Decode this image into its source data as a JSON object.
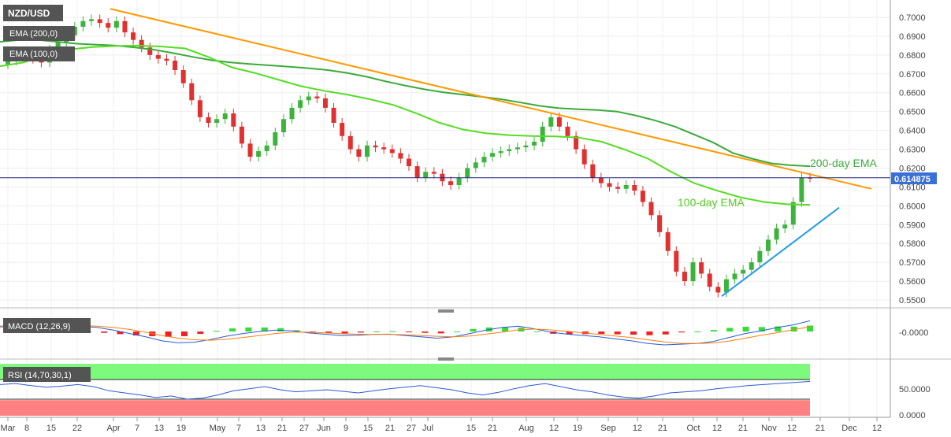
{
  "chart_data": [
    {
      "type": "candlestick",
      "title": "NZD/USD",
      "ylim": [
        0.545,
        0.703
      ],
      "y_ticks": [
        "0.7000",
        "0.6900",
        "0.6800",
        "0.6700",
        "0.6600",
        "0.6500",
        "0.6400",
        "0.6300",
        "0.6200",
        "0.6100",
        "0.6000",
        "0.5900",
        "0.5800",
        "0.5700",
        "0.5600",
        "0.5500"
      ],
      "last_price": "0.614875",
      "x_ticks": [
        "Mar",
        "8",
        "15",
        "22",
        "Apr",
        "7",
        "13",
        "19",
        "May",
        "7",
        "13",
        "21",
        "27",
        "Jun",
        "9",
        "15",
        "21",
        "27",
        "Jul",
        "15",
        "21",
        "Aug",
        "12",
        "19",
        "Sep",
        "12",
        "21",
        "Oct",
        "12",
        "21",
        "Nov",
        "12",
        "21",
        "Dec",
        "12"
      ],
      "legend": [
        "EMA (200,0)",
        "EMA (100,0)"
      ],
      "annotations": [
        "200-day EMA",
        "100-day EMA"
      ],
      "close_series": [
        0.677,
        0.68,
        0.682,
        0.678,
        0.676,
        0.683,
        0.687,
        0.6905,
        0.695,
        0.698,
        0.699,
        0.697,
        0.6945,
        0.698,
        0.692,
        0.688,
        0.684,
        0.68,
        0.678,
        0.677,
        0.672,
        0.665,
        0.656,
        0.647,
        0.644,
        0.646,
        0.649,
        0.642,
        0.633,
        0.626,
        0.629,
        0.632,
        0.639,
        0.646,
        0.652,
        0.656,
        0.658,
        0.657,
        0.652,
        0.644,
        0.637,
        0.63,
        0.626,
        0.632,
        0.631,
        0.63,
        0.628,
        0.625,
        0.621,
        0.615,
        0.618,
        0.617,
        0.613,
        0.611,
        0.615,
        0.62,
        0.623,
        0.626,
        0.628,
        0.629,
        0.63,
        0.631,
        0.632,
        0.634,
        0.642,
        0.647,
        0.642,
        0.637,
        0.63,
        0.622,
        0.615,
        0.612,
        0.61,
        0.609,
        0.611,
        0.608,
        0.602,
        0.595,
        0.586,
        0.576,
        0.565,
        0.56,
        0.57,
        0.564,
        0.557,
        0.554,
        0.561,
        0.564,
        0.566,
        0.57,
        0.576,
        0.582,
        0.588,
        0.59,
        0.602,
        0.615,
        0.6149
      ],
      "ema200_series": [
        0.687,
        0.688,
        0.688,
        0.687,
        0.686,
        0.6855,
        0.685,
        0.684,
        0.6828,
        0.681,
        0.679,
        0.6772,
        0.676,
        0.6752,
        0.6745,
        0.6738,
        0.673,
        0.672,
        0.6705,
        0.6685,
        0.666,
        0.6638,
        0.6618,
        0.6602,
        0.659,
        0.6578,
        0.6565,
        0.6548,
        0.653,
        0.6518,
        0.6512,
        0.6508,
        0.65,
        0.6478,
        0.6452,
        0.642,
        0.6378,
        0.6335,
        0.628,
        0.625,
        0.6225,
        0.6215,
        0.621
      ],
      "ema100_series": [
        0.674,
        0.676,
        0.68,
        0.683,
        0.6842,
        0.6848,
        0.685,
        0.6845,
        0.6835,
        0.679,
        0.6735,
        0.6705,
        0.667,
        0.6635,
        0.661,
        0.659,
        0.6565,
        0.6535,
        0.649,
        0.644,
        0.6405,
        0.6385,
        0.6375,
        0.637,
        0.6368,
        0.6362,
        0.634,
        0.6298,
        0.625,
        0.618,
        0.612,
        0.608,
        0.6045,
        0.602,
        0.6008,
        0.6005
      ],
      "resistance_line": {
        "from": [
          0.7045,
          "Mar-31"
        ],
        "to": [
          0.609,
          "Nov-28"
        ]
      },
      "support_line": {
        "from": [
          0.552,
          "Oct-13"
        ],
        "to": [
          0.599,
          "Nov-24"
        ]
      }
    },
    {
      "type": "bar+line",
      "title": "MACD (12,26,9)",
      "y_ticks": [
        "-0.0000"
      ],
      "macd_series": [
        0.004,
        0.0045,
        0.005,
        0.0052,
        0.0048,
        0.004,
        0.003,
        0.001,
        -0.0015,
        -0.004,
        -0.007,
        -0.0085,
        -0.008,
        -0.006,
        -0.0035,
        -0.0015,
        0.0,
        0.001,
        0.0005,
        -0.001,
        -0.002,
        -0.003,
        -0.0028,
        -0.0022,
        -0.002,
        -0.003,
        -0.004,
        -0.005,
        -0.004,
        -0.0015,
        0.001,
        0.003,
        0.004,
        0.002,
        -0.0005,
        -0.002,
        -0.003,
        -0.004,
        -0.0055,
        -0.007,
        -0.009,
        -0.01,
        -0.0095,
        -0.009,
        -0.0075,
        -0.0045,
        -0.0015,
        0.0005,
        0.003,
        0.005,
        0.008
      ],
      "signal_series": [
        0.003,
        0.0036,
        0.0042,
        0.0046,
        0.0047,
        0.0045,
        0.004,
        0.003,
        0.0015,
        -0.0005,
        -0.003,
        -0.005,
        -0.0062,
        -0.0065,
        -0.0058,
        -0.0045,
        -0.003,
        -0.0015,
        -0.0005,
        -0.0005,
        -0.001,
        -0.0016,
        -0.002,
        -0.0022,
        -0.0022,
        -0.0024,
        -0.003,
        -0.0036,
        -0.004,
        -0.0034,
        -0.002,
        -0.0004,
        0.0012,
        0.0018,
        0.0012,
        0.0002,
        -0.001,
        -0.0022,
        -0.0034,
        -0.0046,
        -0.0062,
        -0.0078,
        -0.0088,
        -0.009,
        -0.0086,
        -0.0072,
        -0.005,
        -0.0028,
        -0.0008,
        0.0014,
        0.0036
      ],
      "histogram": [
        0.001,
        0.0009,
        0.0008,
        0.0006,
        0.0001,
        -0.0005,
        -0.001,
        -0.002,
        -0.003,
        -0.0035,
        -0.004,
        -0.0035,
        -0.0018,
        0.0005,
        0.0023,
        0.003,
        0.003,
        0.0025,
        0.001,
        -0.0005,
        -0.001,
        -0.0014,
        -0.0008,
        0.0,
        0.0002,
        -0.0006,
        -0.001,
        -0.0014,
        0.0,
        0.0019,
        0.003,
        0.0034,
        0.0028,
        0.0002,
        -0.0017,
        -0.0022,
        -0.002,
        -0.0018,
        -0.0021,
        -0.0024,
        -0.0028,
        -0.0022,
        -0.0007,
        0.0,
        0.0011,
        0.0027,
        0.0035,
        0.0033,
        0.0038,
        0.0036,
        0.0044
      ]
    },
    {
      "type": "line",
      "title": "RSI (14,70,30,1)",
      "y_ticks": [
        "50.0000",
        "0.0000"
      ],
      "overbought": 70,
      "oversold": 30,
      "rsi_series": [
        60,
        62,
        58,
        55,
        57,
        60,
        56,
        48,
        44,
        40,
        35,
        38,
        32,
        34,
        40,
        48,
        52,
        56,
        50,
        46,
        48,
        50,
        47,
        44,
        48,
        52,
        55,
        58,
        54,
        50,
        44,
        40,
        45,
        52,
        58,
        62,
        56,
        50,
        46,
        40,
        36,
        34,
        38,
        44,
        46,
        48,
        52,
        55,
        58,
        60,
        62,
        64,
        66
      ]
    }
  ],
  "colors": {
    "candle_up": "#3cb43c",
    "candle_down": "#e03030",
    "ema200": "#3caa3c",
    "ema100": "#55dd22",
    "resistance": "#ff9900",
    "support": "#2299ee",
    "macd_line": "#2a5bd7",
    "signal_line": "#ff7f0e",
    "rsi_line": "#2a5bd7",
    "overbought_zone": "#7dfa7d",
    "oversold_zone": "#ff8080",
    "price_tag": "#3a6fd8"
  }
}
